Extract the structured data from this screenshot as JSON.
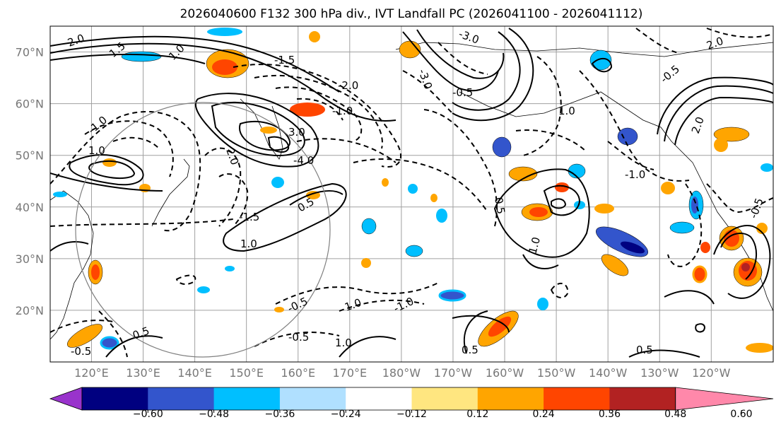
{
  "chart_data": {
    "type": "contour-map",
    "title": "2026040600 F132 300 hPa div., IVT Landfall PC (2026041100 - 2026041112)",
    "lon_ticks": [
      "120°E",
      "130°E",
      "140°E",
      "150°E",
      "160°E",
      "170°E",
      "180°W",
      "170°W",
      "160°W",
      "150°W",
      "140°W",
      "130°W",
      "120°W"
    ],
    "lat_ticks": [
      "70°N",
      "60°N",
      "50°N",
      "40°N",
      "30°N",
      "20°N"
    ],
    "lon_range_deg_east": [
      112,
      252
    ],
    "lat_range": [
      10,
      75
    ],
    "grid": true,
    "colorbar": {
      "ticks": [
        "−0.60",
        "−0.48",
        "−0.36",
        "−0.24",
        "−0.12",
        "0.12",
        "0.24",
        "0.36",
        "0.48",
        "0.60"
      ],
      "levels": [
        -0.6,
        -0.48,
        -0.36,
        -0.24,
        -0.12,
        0.12,
        0.24,
        0.36,
        0.48,
        0.6
      ],
      "colors": [
        "#9933cc",
        "#000080",
        "#3355cc",
        "#00bfff",
        "#b0e0ff",
        "#ffffff",
        "#ffe680",
        "#ffa500",
        "#ff4500",
        "#b22222",
        "#ff88aa"
      ],
      "extend": "both"
    },
    "contour_labels": [
      "2.0",
      "1.5",
      "1.0",
      "-1.5",
      "-2.0",
      "3.0",
      "-1.0",
      "-3.0",
      "1.0",
      "2.0",
      "1.0",
      "-0.5",
      "-3.0",
      "-4.0",
      "2.0",
      "1.0",
      "-1.5",
      "-0.5",
      "1.0",
      "-1.0",
      "0.5",
      "-1.0",
      "1.0",
      "0.5",
      "-1.0",
      "-0.5",
      "1.0",
      "-0.5",
      "0.5",
      "-0.5",
      "0.5",
      "0.5",
      "2.0",
      "-0.5"
    ]
  }
}
